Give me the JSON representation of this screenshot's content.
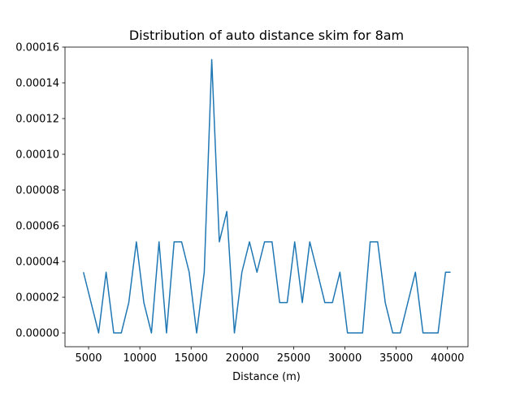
{
  "chart_data": {
    "type": "line",
    "title": "Distribution of auto distance skim for 8am",
    "xlabel": "Distance (m)",
    "ylabel": "",
    "xlim": [
      2700,
      42000
    ],
    "ylim": [
      -7.7e-06,
      0.00016
    ],
    "xticks": [
      5000,
      10000,
      15000,
      20000,
      25000,
      30000,
      35000,
      40000
    ],
    "xtick_labels": [
      "5000",
      "10000",
      "15000",
      "20000",
      "25000",
      "30000",
      "35000",
      "40000"
    ],
    "yticks": [
      0,
      2e-05,
      4e-05,
      6e-05,
      8e-05,
      0.0001,
      0.00012,
      0.00014,
      0.00016
    ],
    "ytick_labels": [
      "0.00000",
      "0.00002",
      "0.00004",
      "0.00006",
      "0.00008",
      "0.00010",
      "0.00012",
      "0.00014",
      "0.00016"
    ],
    "grid": false,
    "color": "#1f77b4",
    "series": [
      {
        "x": [
          4500,
          5980,
          6710,
          7450,
          8190,
          8920,
          9660,
          10390,
          11130,
          11870,
          12600,
          13340,
          14070,
          14810,
          15540,
          16280,
          17010,
          17750,
          18480,
          19220,
          19950,
          20690,
          21420,
          22160,
          22890,
          23630,
          24370,
          25100,
          25840,
          26570,
          27310,
          28040,
          28780,
          29510,
          30250,
          30990,
          31720,
          32460,
          33190,
          33930,
          34660,
          35400,
          36130,
          36870,
          37610,
          38340,
          39080,
          39810,
          40300
        ],
        "values": [
          3.4e-05,
          0.0,
          3.4e-05,
          0.0,
          0.0,
          1.7e-05,
          5.1e-05,
          1.7e-05,
          0.0,
          5.1e-05,
          0.0,
          5.1e-05,
          5.1e-05,
          3.4e-05,
          0.0,
          3.4e-05,
          0.000153,
          5.1e-05,
          6.8e-05,
          0.0,
          3.4e-05,
          5.1e-05,
          3.4e-05,
          5.1e-05,
          5.1e-05,
          1.7e-05,
          1.7e-05,
          5.1e-05,
          1.7e-05,
          5.1e-05,
          3.4e-05,
          1.7e-05,
          1.7e-05,
          3.4e-05,
          0.0,
          0.0,
          0.0,
          5.1e-05,
          5.1e-05,
          1.7e-05,
          0.0,
          0.0,
          1.7e-05,
          3.4e-05,
          0.0,
          0.0,
          0.0,
          3.4e-05,
          3.4e-05
        ]
      }
    ]
  }
}
